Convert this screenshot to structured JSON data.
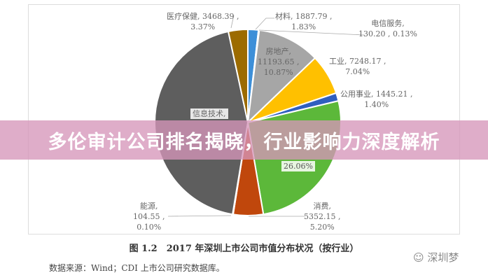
{
  "banner": {
    "title": "多伦审计公司排名揭晓，行业影响力深度解析"
  },
  "caption": "图 1.2　2017 年深圳上市公司市值分布状况（按行业）",
  "source": "数据来源：Wind；CDI 上市公司研究数据库。",
  "watermark": "深圳梦",
  "chart_data": {
    "type": "pie",
    "slices": [
      {
        "name": "材料",
        "value": 1887.79,
        "percent": 1.83,
        "label": "材料, 1887.79 ,",
        "pct_label": "1.83%",
        "color": "#3d8fd8"
      },
      {
        "name": "电信服务",
        "value": 130.2,
        "percent": 0.13,
        "label": "电信服务,",
        "pct_label": "130.20 , 0.13%",
        "color": "#d9d9d9"
      },
      {
        "name": "房地产",
        "value": 11193.65,
        "percent": 10.87,
        "label": "房地产,",
        "pct_label": "11193.65 ,",
        "pct2": "10.87%",
        "color": "#a6a6a6"
      },
      {
        "name": "工业",
        "value": 7248.17,
        "percent": 7.04,
        "label": "工业, 7248.17 ,",
        "pct_label": "7.04%",
        "color": "#ffc000"
      },
      {
        "name": "公用事业",
        "value": 1445.21,
        "percent": 1.4,
        "label": "公用事业, 1445.21 ,",
        "pct_label": "1.40%",
        "color": "#2f5fbf"
      },
      {
        "name": "",
        "percent": 26.06,
        "pct_label": "26.06%",
        "color": "#5cb83a"
      },
      {
        "name": "消费",
        "value": 5352.15,
        "percent": 5.2,
        "label": "消费,",
        "pct_label": "5352.15 ,",
        "pct2": "5.20%",
        "color": "#c0470c"
      },
      {
        "name": "能源",
        "value": 104.55,
        "percent": 0.1,
        "label": "能源,",
        "pct_label": "104.55 ,",
        "pct2": "0.10%",
        "color": "#999999"
      },
      {
        "name": "信息技术",
        "percent": 44.0,
        "label": "信息技术,",
        "color": "#5e5e5e"
      },
      {
        "name": "医疗保健",
        "value": 3468.39,
        "percent": 3.37,
        "label": "医疗保健, 3468.39 ,",
        "pct_label": "3.37%",
        "color": "#9c6b00"
      }
    ]
  }
}
